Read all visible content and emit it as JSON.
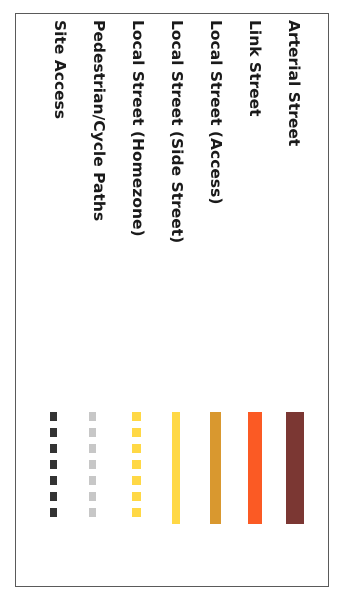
{
  "legend": {
    "items": [
      {
        "label": "Arterial Street",
        "color": "#7b3733",
        "style": "solid"
      },
      {
        "label": "Link Street",
        "color": "#fb5a24",
        "style": "solid"
      },
      {
        "label": "Local Street (Access)",
        "color": "#d9982f",
        "style": "solid"
      },
      {
        "label": "Local Street (Side Street)",
        "color": "#ffd845",
        "style": "solid"
      },
      {
        "label": "Local Street (Homezone)",
        "color": "#ffd845",
        "style": "dashed"
      },
      {
        "label": "Pedestrian/Cycle Paths",
        "color": "#c7c7c7",
        "style": "dashed"
      },
      {
        "label": "Site Access",
        "color": "#333333",
        "style": "dashed"
      }
    ]
  }
}
